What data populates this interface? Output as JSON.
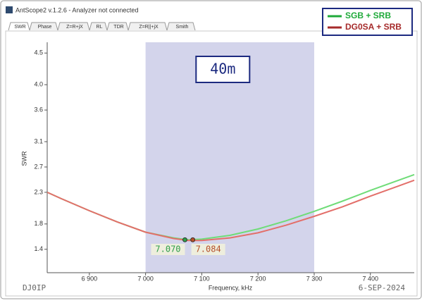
{
  "window": {
    "title": "AntScope2 v.1.2.6 - Analyzer not connected",
    "tabs": [
      "SWR",
      "Phase",
      "Z=R+jX",
      "RL",
      "TDR",
      "Z=R||+jX",
      "Smith"
    ]
  },
  "chart_data": {
    "type": "line",
    "x_label": "Frequency, kHz",
    "y_label": "SWR",
    "x": [
      6825,
      6850,
      6900,
      6950,
      7000,
      7050,
      7075,
      7100,
      7150,
      7200,
      7250,
      7300,
      7350,
      7400,
      7450,
      7478
    ],
    "series": [
      {
        "name": "SGB + SRB",
        "color": "#6fdc78",
        "values": [
          2.3,
          2.2,
          2.01,
          1.83,
          1.67,
          1.58,
          1.55,
          1.56,
          1.62,
          1.72,
          1.85,
          2.0,
          2.16,
          2.33,
          2.49,
          2.58
        ]
      },
      {
        "name": "DG0SA + SRB",
        "color": "#e36f6a",
        "values": [
          2.3,
          2.2,
          2.01,
          1.83,
          1.67,
          1.57,
          1.54,
          1.54,
          1.58,
          1.66,
          1.78,
          1.92,
          2.07,
          2.24,
          2.4,
          2.49
        ]
      }
    ],
    "legend_colors": [
      "#1faa3a",
      "#a52a2a"
    ],
    "xlim": [
      6825,
      7478
    ],
    "ylim": [
      1.03,
      4.67
    ],
    "xticks": [
      {
        "value": 6900,
        "label": "6 900"
      },
      {
        "value": 7000,
        "label": "7 000"
      },
      {
        "value": 7100,
        "label": "7 100"
      },
      {
        "value": 7200,
        "label": "7 200"
      },
      {
        "value": 7300,
        "label": "7 300"
      },
      {
        "value": 7400,
        "label": "7 400"
      }
    ],
    "yticks": [
      1.4,
      1.8,
      2.3,
      2.7,
      3.1,
      3.6,
      {
        "value": 4,
        "label": "4.0"
      },
      4.5
    ],
    "band": {
      "range": [
        7000,
        7300
      ],
      "label": "40m",
      "color": "#d3d4eb"
    },
    "markers": [
      {
        "x": 7070,
        "y": 1.55,
        "label": "7.070",
        "color": "#2f9e4a"
      },
      {
        "x": 7084,
        "y": 1.55,
        "label": "7.084",
        "color": "#b5502a"
      }
    ],
    "footer_left": "DJ0IP",
    "footer_right": "6-SEP-2024"
  }
}
